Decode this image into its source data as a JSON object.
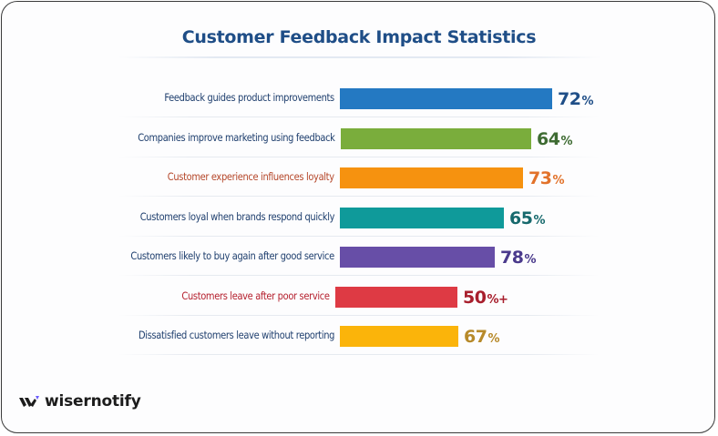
{
  "brand": {
    "name": "wisernotify",
    "accent": "#6b5cff"
  },
  "chart_data": {
    "type": "bar",
    "orientation": "horizontal",
    "title": "Customer Feedback Impact Statistics",
    "xlabel": "",
    "ylabel": "",
    "grid": false,
    "legend": "none",
    "unit": "%",
    "categories": [
      "Feedback guides product improvements",
      "Companies improve marketing using feedback",
      "Customer experience influences loyalty",
      "Customers loyal when brands respond quickly",
      "Customers likely to buy again after good service",
      "Customers leave after poor service",
      "Dissatisfied customers leave without reporting"
    ],
    "values": [
      72,
      64,
      73,
      65,
      78,
      50,
      67
    ],
    "value_labels": [
      {
        "num": "72",
        "suffix": "%"
      },
      {
        "num": "64",
        "suffix": "%"
      },
      {
        "num": "73",
        "suffix": "%"
      },
      {
        "num": "65",
        "suffix": "%"
      },
      {
        "num": "78",
        "suffix": "%"
      },
      {
        "num": "50",
        "suffix": "%+"
      },
      {
        "num": "67",
        "suffix": "%"
      }
    ],
    "bar_colors": [
      "#2479c2",
      "#7aad3c",
      "#f6920f",
      "#0f9a9a",
      "#674ea7",
      "#de3a44",
      "#fbb40a"
    ],
    "label_colors": [
      "#1f3f6e",
      "#1f3f6e",
      "#b5472a",
      "#1f3f6e",
      "#1f3f6e",
      "#b5202e",
      "#1f3f6e"
    ],
    "value_colors": [
      "#1f4e87",
      "#3e6b32",
      "#e2722a",
      "#17696d",
      "#4a3a8c",
      "#a81f2d",
      "#b78a2a"
    ]
  }
}
